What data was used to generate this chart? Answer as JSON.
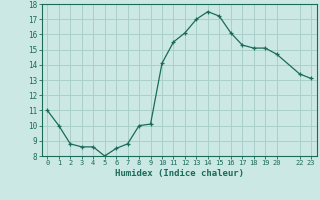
{
  "x": [
    0,
    1,
    2,
    3,
    4,
    5,
    6,
    7,
    8,
    9,
    10,
    11,
    12,
    13,
    14,
    15,
    16,
    17,
    18,
    19,
    20,
    22,
    23
  ],
  "y": [
    11.0,
    10.0,
    8.8,
    8.6,
    8.6,
    8.0,
    8.5,
    8.8,
    10.0,
    10.1,
    14.1,
    15.5,
    16.1,
    17.0,
    17.5,
    17.2,
    16.1,
    15.3,
    15.1,
    15.1,
    14.7,
    13.4,
    13.1
  ],
  "line_color": "#1a6b5a",
  "marker_color": "#1a6b5a",
  "bg_color": "#cce8e4",
  "grid_color": "#aad0cc",
  "axis_color": "#1a6b5a",
  "tick_color": "#1a6b5a",
  "xlabel": "Humidex (Indice chaleur)",
  "ylim": [
    8,
    18
  ],
  "xlim": [
    -0.5,
    23.5
  ],
  "yticks": [
    8,
    9,
    10,
    11,
    12,
    13,
    14,
    15,
    16,
    17,
    18
  ],
  "xticks": [
    0,
    1,
    2,
    3,
    4,
    5,
    6,
    7,
    8,
    9,
    10,
    11,
    12,
    13,
    14,
    15,
    16,
    17,
    18,
    19,
    20,
    22,
    23
  ]
}
